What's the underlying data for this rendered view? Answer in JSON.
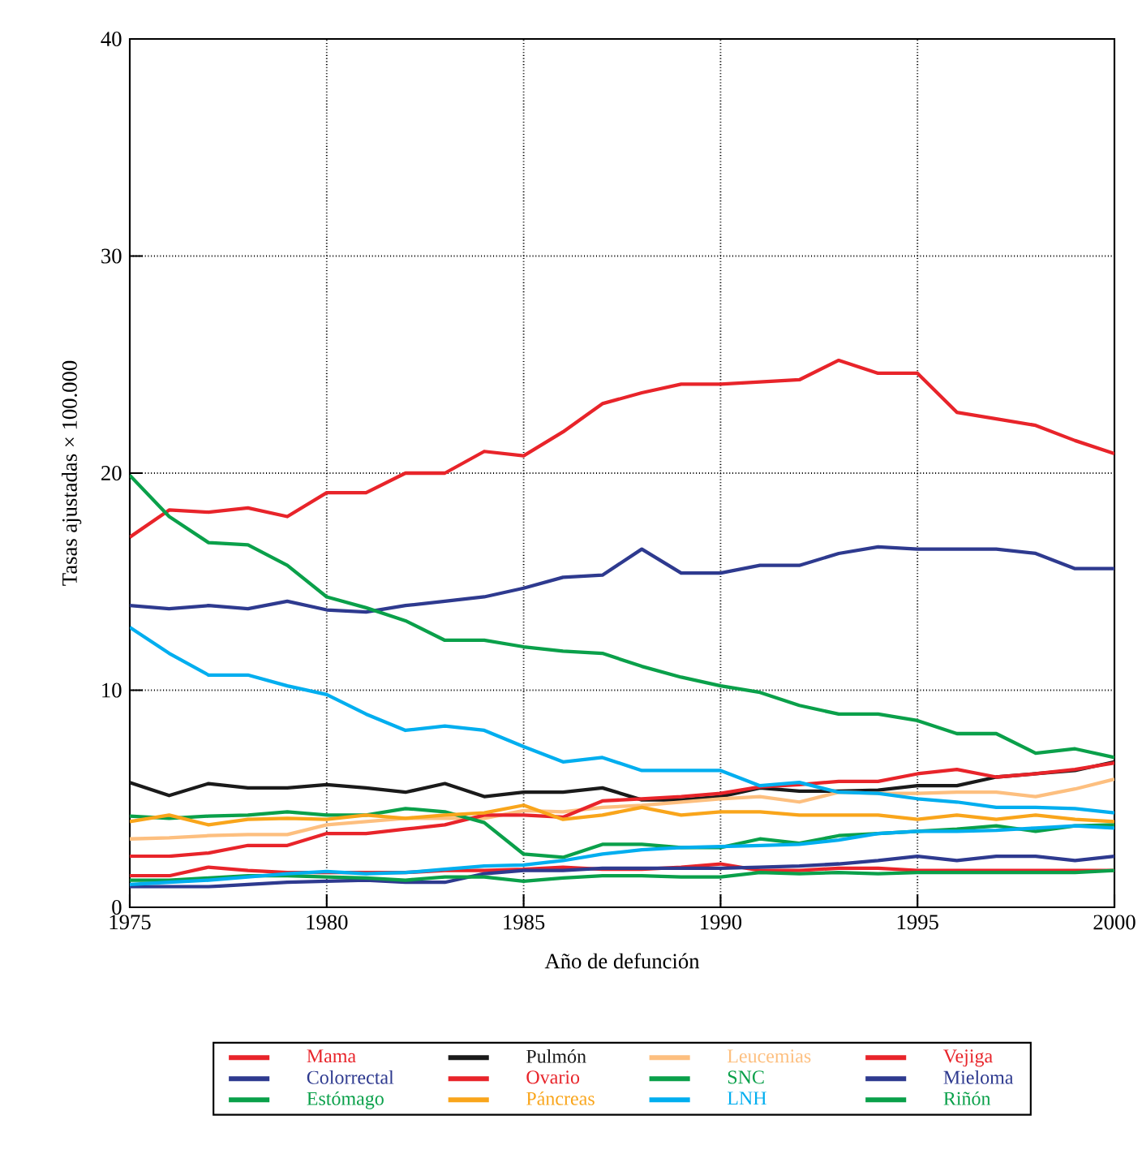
{
  "chart_data": {
    "type": "line",
    "xlabel": "Año de defunción",
    "ylabel": "Tasas ajustadas × 100.000",
    "x": [
      1975,
      1976,
      1977,
      1978,
      1979,
      1980,
      1981,
      1982,
      1983,
      1984,
      1985,
      1986,
      1987,
      1988,
      1989,
      1990,
      1991,
      1992,
      1993,
      1994,
      1995,
      1996,
      1997,
      1998,
      1999,
      2000
    ],
    "xlim": [
      1975,
      2000
    ],
    "xticks": [
      1975,
      1980,
      1985,
      1990,
      1995,
      2000
    ],
    "ylim": [
      0,
      40
    ],
    "yticks": [
      0,
      10,
      20,
      30,
      40
    ],
    "grid": true,
    "legend": "bottom",
    "series": [
      {
        "name": "Mama",
        "color": "#e8242a",
        "values": [
          17.05,
          18.3,
          18.2,
          18.4,
          18.0,
          19.1,
          19.1,
          20.0,
          20.0,
          21.0,
          20.8,
          21.9,
          23.2,
          23.7,
          24.1,
          24.1,
          24.2,
          24.3,
          25.2,
          24.6,
          24.6,
          22.8,
          22.5,
          22.2,
          21.5,
          20.9
        ]
      },
      {
        "name": "Pulmón",
        "color": "#1a1a1a",
        "values": [
          5.75,
          5.15,
          5.7,
          5.5,
          5.5,
          5.65,
          5.5,
          5.3,
          5.7,
          5.1,
          5.3,
          5.3,
          5.5,
          4.95,
          4.95,
          5.1,
          5.5,
          5.35,
          5.35,
          5.4,
          5.6,
          5.6,
          6.0,
          6.15,
          6.3,
          6.7
        ]
      },
      {
        "name": "Leucemias",
        "color": "#fdbf7f",
        "values": [
          3.15,
          3.2,
          3.3,
          3.35,
          3.35,
          3.8,
          3.95,
          4.1,
          4.1,
          4.1,
          4.45,
          4.4,
          4.6,
          4.7,
          4.85,
          5.0,
          5.1,
          4.85,
          5.3,
          5.25,
          5.25,
          5.3,
          5.3,
          5.1,
          5.45,
          5.9
        ]
      },
      {
        "name": "Vejiga",
        "color": "#e8242a",
        "values": [
          2.35,
          2.35,
          2.5,
          2.85,
          2.85,
          3.4,
          3.4,
          3.6,
          3.8,
          4.25,
          4.25,
          4.15,
          4.9,
          5.0,
          5.1,
          5.25,
          5.55,
          5.65,
          5.8,
          5.8,
          6.15,
          6.35,
          6.0,
          6.15,
          6.35,
          6.65
        ]
      },
      {
        "name": "Colorrectal",
        "color": "#2e3a8f",
        "values": [
          13.9,
          13.75,
          13.9,
          13.75,
          14.1,
          13.7,
          13.6,
          13.9,
          14.1,
          14.3,
          14.7,
          15.2,
          15.3,
          16.5,
          15.4,
          15.4,
          15.75,
          15.75,
          16.3,
          16.6,
          16.5,
          16.5,
          16.5,
          16.3,
          15.6,
          15.6
        ]
      },
      {
        "name": "Ovario",
        "color": "#e8242a",
        "values": [
          1.45,
          1.45,
          1.85,
          1.7,
          1.6,
          1.6,
          1.6,
          1.6,
          1.7,
          1.7,
          1.75,
          1.85,
          1.75,
          1.75,
          1.85,
          2.0,
          1.7,
          1.7,
          1.8,
          1.8,
          1.7,
          1.7,
          1.7,
          1.7,
          1.7,
          1.7
        ]
      },
      {
        "name": "SNC",
        "color": "#0aa04a",
        "values": [
          4.2,
          4.1,
          4.2,
          4.25,
          4.4,
          4.25,
          4.25,
          4.55,
          4.4,
          3.9,
          2.45,
          2.3,
          2.9,
          2.9,
          2.75,
          2.75,
          3.15,
          2.95,
          3.3,
          3.4,
          3.5,
          3.6,
          3.75,
          3.5,
          3.75,
          3.8
        ]
      },
      {
        "name": "Mieloma",
        "color": "#2e3a8f",
        "values": [
          0.95,
          0.95,
          0.95,
          1.05,
          1.15,
          1.2,
          1.25,
          1.15,
          1.15,
          1.55,
          1.7,
          1.7,
          1.8,
          1.8,
          1.8,
          1.8,
          1.85,
          1.9,
          2.0,
          2.15,
          2.35,
          2.15,
          2.35,
          2.35,
          2.15,
          2.35
        ]
      },
      {
        "name": "Estómago",
        "color": "#0aa04a",
        "values": [
          19.9,
          18.0,
          16.8,
          16.7,
          15.75,
          14.3,
          13.8,
          13.2,
          12.3,
          12.3,
          12.0,
          11.8,
          11.7,
          11.1,
          10.6,
          10.2,
          9.9,
          9.3,
          8.9,
          8.9,
          8.6,
          8.0,
          8.0,
          7.1,
          7.3,
          6.9
        ]
      },
      {
        "name": "Páncreas",
        "color": "#f9a51b",
        "values": [
          3.95,
          4.25,
          3.8,
          4.05,
          4.1,
          4.05,
          4.25,
          4.1,
          4.25,
          4.35,
          4.7,
          4.05,
          4.25,
          4.6,
          4.25,
          4.4,
          4.4,
          4.25,
          4.25,
          4.25,
          4.05,
          4.25,
          4.05,
          4.25,
          4.05,
          3.95
        ]
      },
      {
        "name": "LNH",
        "color": "#00aeef",
        "values": [
          12.9,
          11.7,
          10.7,
          10.7,
          10.2,
          9.8,
          8.9,
          8.15,
          8.35,
          8.15,
          7.4,
          6.7,
          6.9,
          6.3,
          6.3,
          6.3,
          5.6,
          5.75,
          5.3,
          5.25,
          5.0,
          4.85,
          4.6,
          4.6,
          4.55,
          4.35
        ]
      },
      {
        "name": "Riñón",
        "color": "#0aa04a",
        "values": [
          1.25,
          1.25,
          1.35,
          1.45,
          1.45,
          1.4,
          1.35,
          1.25,
          1.4,
          1.4,
          1.2,
          1.35,
          1.45,
          1.45,
          1.4,
          1.4,
          1.6,
          1.55,
          1.6,
          1.55,
          1.6,
          1.6,
          1.6,
          1.6,
          1.6,
          1.7
        ]
      },
      {
        "color": "#00aeef",
        "values": [
          1.05,
          1.15,
          1.25,
          1.4,
          1.55,
          1.65,
          1.55,
          1.6,
          1.75,
          1.9,
          1.95,
          2.15,
          2.45,
          2.65,
          2.75,
          2.8,
          2.85,
          2.9,
          3.1,
          3.4,
          3.5,
          3.5,
          3.55,
          3.65,
          3.75,
          3.65
        ]
      }
    ]
  }
}
